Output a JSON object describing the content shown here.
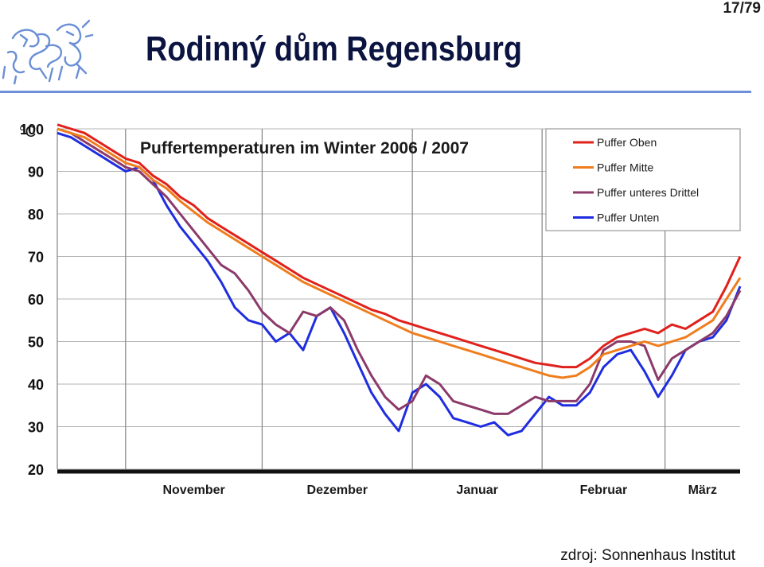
{
  "slide": {
    "title": "Rodinný dům Regensburg",
    "page_counter": "17/79",
    "source": "zdroj: Sonnenhaus Institut"
  },
  "colors": {
    "title": "#0b1440",
    "rule": "#6c8fd9",
    "logo": "#6a8fd6"
  },
  "icons": {
    "logo": "university-lion-logo-icon"
  },
  "chart_data": {
    "type": "line",
    "title": "Puffertemperaturen im Winter 2006 / 2007",
    "ylabel": "°C",
    "xlabel": "",
    "ylim": [
      20,
      100
    ],
    "yticks": [
      100,
      90,
      80,
      70,
      60,
      50,
      40,
      30,
      20
    ],
    "xlim": [
      0,
      100
    ],
    "month_boundaries": [
      10,
      30,
      52,
      71,
      89
    ],
    "categories": [
      "November",
      "Dezember",
      "Januar",
      "Februar",
      "März"
    ],
    "category_centers": [
      20,
      41,
      61.5,
      80,
      94.5
    ],
    "grid": true,
    "legend_position": "top-right",
    "x": [
      0,
      2,
      4,
      6,
      8,
      10,
      12,
      14,
      16,
      18,
      20,
      22,
      24,
      26,
      28,
      30,
      32,
      34,
      36,
      38,
      40,
      42,
      44,
      46,
      48,
      50,
      52,
      54,
      56,
      58,
      60,
      62,
      64,
      66,
      68,
      70,
      72,
      74,
      76,
      78,
      80,
      82,
      84,
      86,
      88,
      90,
      92,
      94,
      96,
      98,
      100
    ],
    "series": [
      {
        "name": "Puffer Oben",
        "color": "#e0201b",
        "values": [
          101,
          100,
          99,
          97,
          95,
          93,
          92,
          89,
          87,
          84,
          82,
          79,
          77,
          75,
          73,
          71,
          69,
          67,
          65,
          63.5,
          62,
          60.5,
          59,
          57.5,
          56.5,
          55,
          54,
          53,
          52,
          51,
          50,
          49,
          48,
          47,
          46,
          45,
          44.5,
          44,
          44,
          46,
          49,
          51,
          52,
          53,
          52,
          54,
          53,
          55,
          57,
          63,
          70
        ]
      },
      {
        "name": "Puffer Mitte",
        "color": "#f07d1c",
        "values": [
          100,
          99,
          98,
          96,
          94,
          92,
          91,
          88,
          86,
          83,
          80.5,
          78,
          76,
          74,
          72,
          70,
          68,
          66,
          64,
          62.5,
          61,
          59.5,
          58,
          56.5,
          55,
          53.5,
          52,
          51,
          50,
          49,
          48,
          47,
          46,
          45,
          44,
          43,
          42,
          41.5,
          42,
          44,
          47,
          48,
          49,
          50,
          49,
          50,
          51,
          53,
          55,
          60,
          65
        ]
      },
      {
        "name": "Puffer unteres Drittel",
        "color": "#8b3a6a",
        "values": [
          100,
          99,
          97,
          95,
          93,
          91,
          90,
          87,
          84,
          80,
          76,
          72,
          68,
          66,
          62,
          57,
          54,
          52,
          57,
          56,
          58,
          55,
          48,
          42,
          37,
          34,
          36,
          42,
          40,
          36,
          35,
          34,
          33,
          33,
          35,
          37,
          36,
          36,
          36,
          40,
          48,
          50,
          50,
          49,
          41,
          46,
          48,
          50,
          52,
          56,
          62
        ]
      },
      {
        "name": "Puffer Unten",
        "color": "#1f2de0",
        "values": [
          99,
          98,
          96,
          94,
          92,
          90,
          91,
          88,
          82,
          77,
          73,
          69,
          64,
          58,
          55,
          54,
          50,
          52,
          48,
          56,
          58,
          52,
          45,
          38,
          33,
          29,
          38,
          40,
          37,
          32,
          31,
          30,
          31,
          28,
          29,
          33,
          37,
          35,
          35,
          38,
          44,
          47,
          48,
          43,
          37,
          42,
          48,
          50,
          51,
          55,
          63
        ]
      }
    ]
  }
}
